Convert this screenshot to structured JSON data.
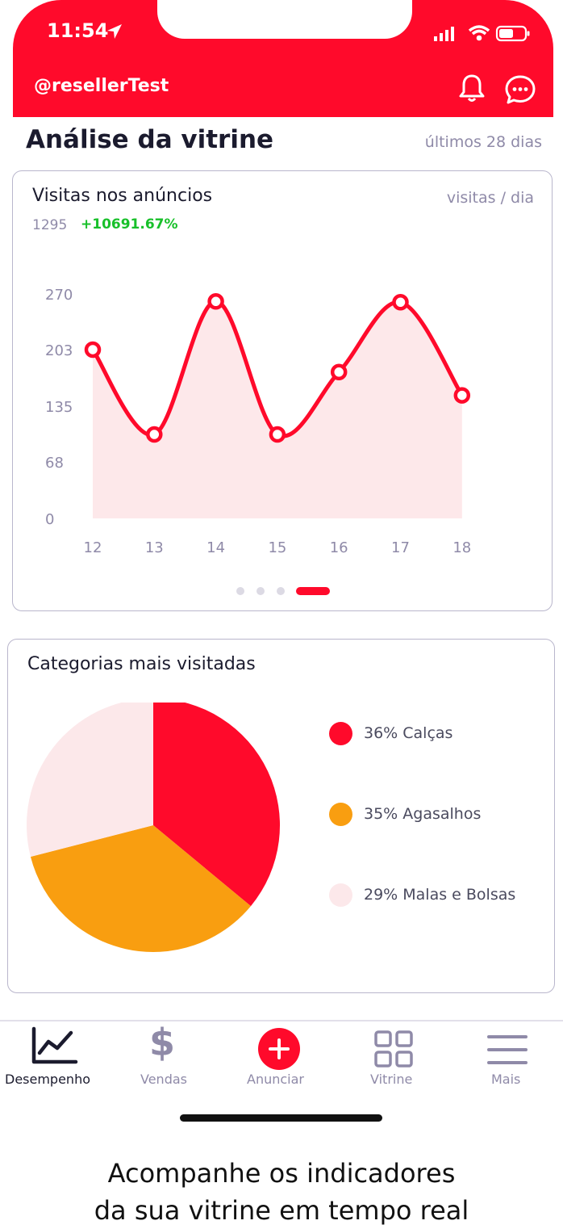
{
  "status_bar": {
    "time": "11:54"
  },
  "header": {
    "account": "@resellerTest",
    "icons": [
      "bell-icon",
      "chat-icon"
    ]
  },
  "page": {
    "title": "Análise da vitrine",
    "range": "últimos 28 dias"
  },
  "visits_card": {
    "title": "Visitas nos anúncios",
    "unit": "visitas / dia",
    "total": "1295",
    "growth": "+10691.67%",
    "pagination": {
      "count": 4,
      "active_index": 3
    }
  },
  "chart_data": [
    {
      "type": "area",
      "title": "Visitas nos anúncios",
      "categories": [
        "12",
        "13",
        "14",
        "15",
        "16",
        "17",
        "18"
      ],
      "values": [
        203,
        101,
        261,
        101,
        176,
        260,
        148
      ],
      "yticks": [
        "0",
        "68",
        "135",
        "203",
        "270"
      ],
      "ylim": [
        0,
        270
      ],
      "line_color": "#ff0a2b",
      "fill_color": "#fde8ea",
      "grid": false
    },
    {
      "type": "pie",
      "title": "Categorias mais visitadas",
      "slices": [
        {
          "label": "36% Calças",
          "value": 36,
          "color": "#ff0a2b"
        },
        {
          "label": "35% Agasalhos",
          "value": 35,
          "color": "#f99e10"
        },
        {
          "label": "29% Malas e Bolsas",
          "value": 29,
          "color": "#fce8ea"
        }
      ]
    }
  ],
  "nav": {
    "items": [
      {
        "label": "Desempenho",
        "icon": "chart-line-icon",
        "active": true
      },
      {
        "label": "Vendas",
        "icon": "dollar-icon",
        "active": false
      },
      {
        "label": "Anunciar",
        "icon": "plus-circle-icon",
        "active": false
      },
      {
        "label": "Vitrine",
        "icon": "grid-icon",
        "active": false
      },
      {
        "label": "Mais",
        "icon": "menu-icon",
        "active": false
      }
    ]
  },
  "caption": {
    "line1": "Acompanhe os indicadores",
    "line2": "da sua vitrine em tempo real"
  },
  "colors": {
    "brand": "#ff0a2b",
    "muted": "#8f8aa8",
    "positive": "#18c02a"
  }
}
